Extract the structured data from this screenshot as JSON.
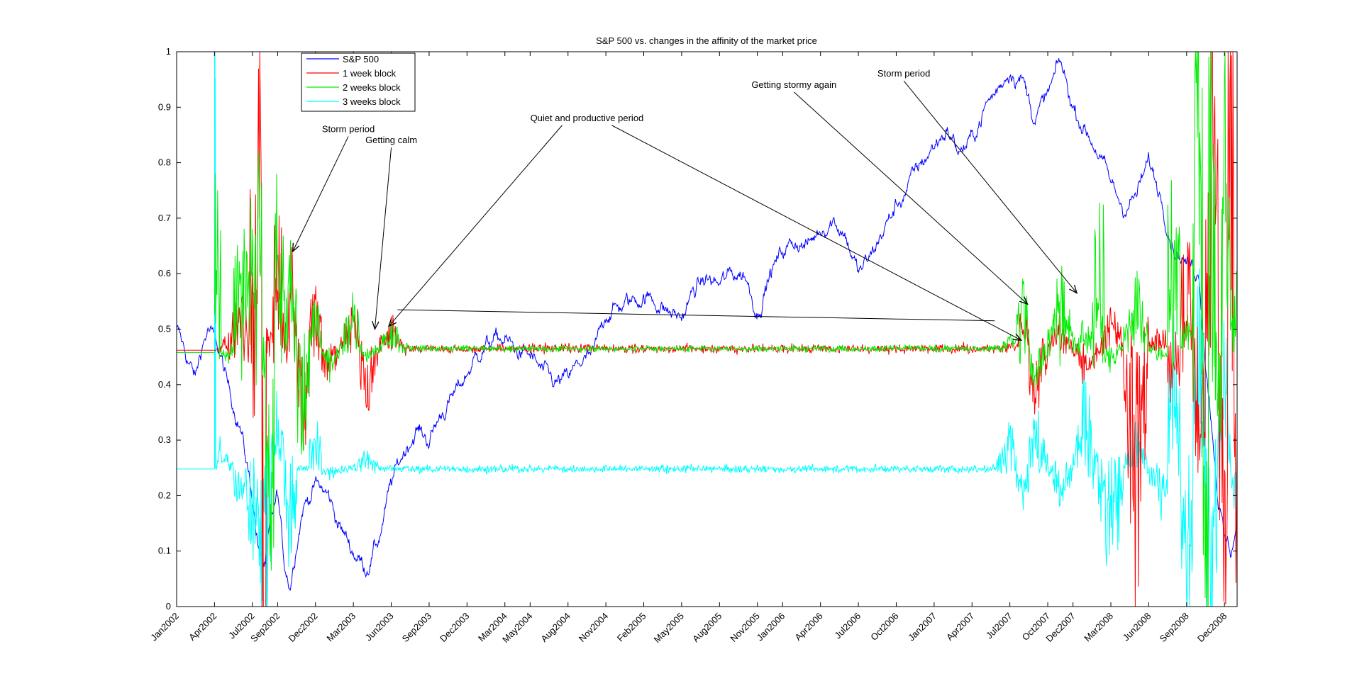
{
  "chart_data": {
    "type": "line",
    "title": "S&P 500 vs. changes in the affinity of the market price",
    "xlabel": "",
    "ylabel": "",
    "ylim": [
      0,
      1
    ],
    "xlim": [
      0,
      84
    ],
    "y_ticks": [
      0,
      0.1,
      0.2,
      0.3,
      0.4,
      0.5,
      0.6,
      0.7,
      0.8,
      0.9,
      1
    ],
    "y_tick_labels": [
      "0",
      "0.1",
      "0.2",
      "0.3",
      "0.4",
      "0.5",
      "0.6",
      "0.7",
      "0.8",
      "0.9",
      "1"
    ],
    "x_ticks": [
      {
        "label": "Jan2002",
        "month": 0
      },
      {
        "label": "Apr2002",
        "month": 3
      },
      {
        "label": "Jul2002",
        "month": 6
      },
      {
        "label": "Sep2002",
        "month": 8
      },
      {
        "label": "Dec2002",
        "month": 11
      },
      {
        "label": "Mar2003",
        "month": 14
      },
      {
        "label": "Jun2003",
        "month": 17
      },
      {
        "label": "Sep2003",
        "month": 20
      },
      {
        "label": "Dec2003",
        "month": 23
      },
      {
        "label": "Mar2004",
        "month": 26
      },
      {
        "label": "May2004",
        "month": 28
      },
      {
        "label": "Aug2004",
        "month": 31
      },
      {
        "label": "Nov2004",
        "month": 34
      },
      {
        "label": "Feb2005",
        "month": 37
      },
      {
        "label": "May2005",
        "month": 40
      },
      {
        "label": "Aug2005",
        "month": 43
      },
      {
        "label": "Nov2005",
        "month": 46
      },
      {
        "label": "Jan2006",
        "month": 48
      },
      {
        "label": "Apr2006",
        "month": 51
      },
      {
        "label": "Jul2006",
        "month": 54
      },
      {
        "label": "Oct2006",
        "month": 57
      },
      {
        "label": "Jan2007",
        "month": 60
      },
      {
        "label": "Apr2007",
        "month": 63
      },
      {
        "label": "Jul2007",
        "month": 66
      },
      {
        "label": "Oct2007",
        "month": 69
      },
      {
        "label": "Dec2007",
        "month": 71
      },
      {
        "label": "Mar2008",
        "month": 74
      },
      {
        "label": "Jun2008",
        "month": 77
      },
      {
        "label": "Sep2008",
        "month": 80
      },
      {
        "label": "Dec2008",
        "month": 83
      }
    ],
    "legend": {
      "position": "top-left",
      "entries": [
        {
          "name": "S&P 500",
          "color": "#0000ff"
        },
        {
          "name": "1 week block",
          "color": "#ff0000"
        },
        {
          "name": "2 weeks block",
          "color": "#00ee00"
        },
        {
          "name": "3 weeks block",
          "color": "#00ffff"
        }
      ]
    },
    "series": [
      {
        "name": "S&P 500",
        "color": "#0000ff",
        "x": [
          0,
          0.8,
          1.5,
          2,
          2.5,
          3,
          3.5,
          4,
          5,
          6,
          6.5,
          7,
          7.5,
          8,
          8.5,
          9,
          9.5,
          10,
          11,
          12,
          13,
          14,
          15,
          16,
          17,
          18,
          19,
          20,
          21,
          22,
          23,
          24,
          25,
          26,
          27,
          28,
          29,
          30,
          31,
          32,
          33,
          34,
          35,
          36,
          37,
          38,
          39,
          40,
          41,
          42,
          43,
          44,
          45,
          46,
          47,
          48,
          49,
          50,
          51,
          52,
          53,
          54,
          55,
          56,
          57,
          58,
          59,
          60,
          61,
          62,
          63,
          64,
          65,
          66,
          67,
          68,
          69,
          70,
          71,
          72,
          73,
          74,
          75,
          76,
          77,
          78,
          79,
          80,
          81,
          81.5,
          82,
          82.5,
          83,
          83.5,
          84
        ],
        "y": [
          0.5,
          0.45,
          0.41,
          0.47,
          0.5,
          0.48,
          0.45,
          0.4,
          0.33,
          0.2,
          0.1,
          0.07,
          0.15,
          0.2,
          0.08,
          0.04,
          0.12,
          0.18,
          0.22,
          0.2,
          0.14,
          0.1,
          0.07,
          0.12,
          0.22,
          0.28,
          0.32,
          0.3,
          0.35,
          0.38,
          0.42,
          0.46,
          0.48,
          0.48,
          0.46,
          0.45,
          0.42,
          0.4,
          0.41,
          0.44,
          0.45,
          0.53,
          0.54,
          0.55,
          0.56,
          0.55,
          0.53,
          0.52,
          0.57,
          0.59,
          0.58,
          0.6,
          0.6,
          0.53,
          0.6,
          0.64,
          0.66,
          0.65,
          0.68,
          0.7,
          0.67,
          0.6,
          0.63,
          0.68,
          0.72,
          0.76,
          0.8,
          0.83,
          0.86,
          0.82,
          0.84,
          0.9,
          0.93,
          0.97,
          0.95,
          0.88,
          0.92,
          0.98,
          0.9,
          0.86,
          0.82,
          0.76,
          0.72,
          0.74,
          0.8,
          0.74,
          0.65,
          0.62,
          0.6,
          0.45,
          0.33,
          0.2,
          0.12,
          0.1,
          0.15
        ]
      },
      {
        "name": "1 week block",
        "color": "#ff0000",
        "baseline": 0.465,
        "keypoints_x": [
          1.5,
          5,
          6.5,
          7,
          7.2,
          8,
          9,
          10,
          11,
          12,
          14,
          15,
          17,
          66,
          67,
          68,
          70,
          72,
          74,
          76,
          78,
          79,
          80,
          81,
          82,
          83,
          83.5,
          84
        ],
        "keypoints_y": [
          0.46,
          0.55,
          0.9,
          0.0,
          0.5,
          0.62,
          0.6,
          0.35,
          0.55,
          0.42,
          0.52,
          0.39,
          0.5,
          0.47,
          0.52,
          0.38,
          0.5,
          0.42,
          0.52,
          0.19,
          0.49,
          0.4,
          0.6,
          0.3,
          0.85,
          0.18,
          1.0,
          0.2
        ]
      },
      {
        "name": "2 weeks block",
        "color": "#00ee00",
        "baseline": 0.465,
        "keypoints_x": [
          3,
          4,
          5,
          6,
          6.5,
          7,
          7.5,
          8,
          9,
          10,
          11,
          12,
          14,
          15,
          17,
          66,
          67,
          68,
          70,
          72,
          73,
          74,
          76,
          78,
          79,
          80,
          81,
          81.5,
          82,
          82.5,
          83,
          84
        ],
        "keypoints_y": [
          0.71,
          0.45,
          0.65,
          0.62,
          0.69,
          0.3,
          0.22,
          0.67,
          0.57,
          0.33,
          0.52,
          0.43,
          0.53,
          0.45,
          0.5,
          0.48,
          0.54,
          0.42,
          0.56,
          0.5,
          0.68,
          0.44,
          0.55,
          0.45,
          0.75,
          0.5,
          0.92,
          0.0,
          1.0,
          0.35,
          0.8,
          0.55
        ]
      },
      {
        "name": "3 weeks block",
        "color": "#00ffff",
        "baseline": 0.248,
        "keypoints_x": [
          0,
          3,
          3.05,
          3.1,
          3.2,
          4,
          5,
          6,
          7,
          8,
          9,
          10,
          11,
          12,
          15,
          17,
          66,
          67,
          68,
          70,
          72,
          74,
          76,
          78,
          79,
          80,
          81,
          82,
          83,
          84
        ],
        "keypoints_y": [
          0.248,
          0.248,
          1.0,
          0.248,
          0.3,
          0.27,
          0.2,
          0.16,
          0.05,
          0.34,
          0.15,
          0.25,
          0.3,
          0.24,
          0.27,
          0.25,
          0.3,
          0.21,
          0.32,
          0.2,
          0.37,
          0.1,
          0.3,
          0.19,
          0.4,
          0.07,
          0.48,
          0.03,
          0.4,
          0.2
        ]
      }
    ],
    "annotations": [
      {
        "text": "Storm period",
        "label_x": 13.6,
        "label_y": 0.855,
        "targets": [
          {
            "x": 9.2,
            "y": 0.64
          }
        ]
      },
      {
        "text": "Getting calm",
        "label_x": 17,
        "label_y": 0.835,
        "targets": [
          {
            "x": 15.7,
            "y": 0.5
          }
        ]
      },
      {
        "text": "Quiet and productive period",
        "label_x": 32.5,
        "label_y": 0.875,
        "targets": [
          {
            "x": 16.8,
            "y": 0.505
          },
          {
            "x": 66.9,
            "y": 0.48
          }
        ]
      },
      {
        "text": "Getting stormy again",
        "label_x": 48.9,
        "label_y": 0.935,
        "targets": [
          {
            "x": 67.4,
            "y": 0.545
          }
        ]
      },
      {
        "text": "Storm period",
        "label_x": 57.6,
        "label_y": 0.955,
        "targets": [
          {
            "x": 71.3,
            "y": 0.565
          }
        ]
      }
    ],
    "extra_lines": [
      {
        "x1": 17.5,
        "y1": 0.535,
        "x2": 64.8,
        "y2": 0.515
      }
    ]
  }
}
